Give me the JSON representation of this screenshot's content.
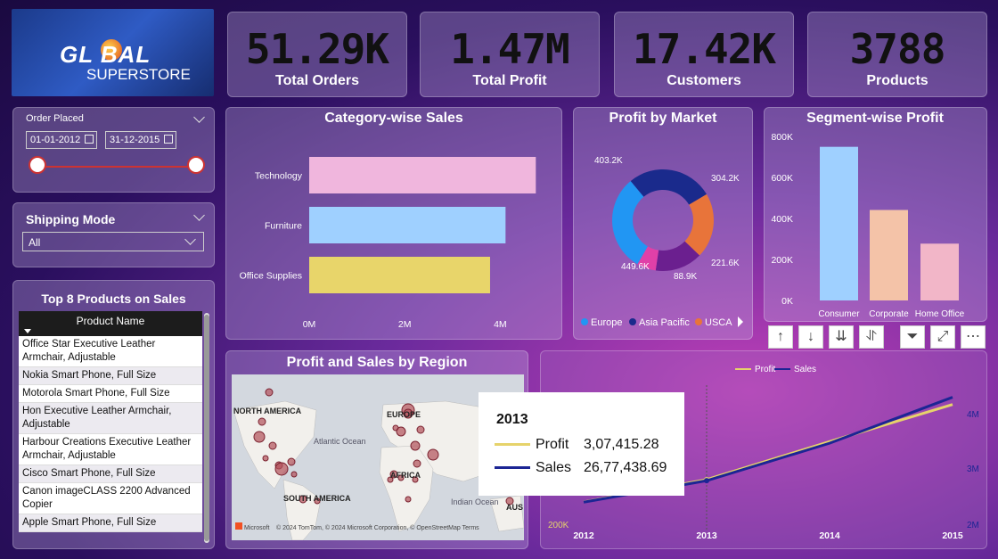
{
  "logo": {
    "line1": "GL  BAL",
    "line2": "SUPERSTORE"
  },
  "kpis": [
    {
      "value": "51.29K",
      "label": "Total Orders"
    },
    {
      "value": "1.47M",
      "label": "Total Profit"
    },
    {
      "value": "17.42K",
      "label": "Customers"
    },
    {
      "value": "3788",
      "label": "Products"
    }
  ],
  "order_filter": {
    "title": "Order Placed",
    "start": "01-01-2012",
    "end": "31-12-2015"
  },
  "shipping_filter": {
    "title": "Shipping Mode",
    "selected": "All"
  },
  "top_products": {
    "title": "Top 8 Products on Sales",
    "column": "Product Name",
    "rows": [
      "Office Star Executive Leather Armchair, Adjustable",
      "Nokia Smart Phone, Full Size",
      "Motorola Smart Phone, Full Size",
      "Hon Executive Leather Armchair, Adjustable",
      "Harbour Creations Executive Leather Armchair, Adjustable",
      "Cisco Smart Phone, Full Size",
      "Canon imageCLASS 2200 Advanced Copier",
      "Apple Smart Phone, Full Size"
    ]
  },
  "map_panel": {
    "title": "Profit and Sales by Region",
    "labels": [
      "NORTH AMERICA",
      "EUROPE",
      "Atlantic Ocean",
      "AFRICA",
      "SOUTH AMERICA",
      "Indian Ocean",
      "AUS"
    ],
    "attribution": "© 2024 TomTom, © 2024 Microsoft Corporation, © OpenStreetMap  Terms",
    "brand": "Microsoft"
  },
  "tooltip": {
    "year": "2013",
    "rows": [
      {
        "name": "Profit",
        "value": "3,07,415.28",
        "color": "#e6d36b"
      },
      {
        "name": "Sales",
        "value": "26,77,438.69",
        "color": "#1c2594"
      }
    ]
  },
  "toolbar": {
    "icons": [
      "arrow-up-icon",
      "arrow-down-icon",
      "double-arrow-down-icon",
      "expand-hierarchy-icon",
      "filter-icon",
      "focus-mode-icon",
      "more-options-icon"
    ]
  },
  "chart_data": [
    {
      "type": "bar",
      "orientation": "horizontal",
      "title": "Category-wise Sales",
      "categories": [
        "Technology",
        "Furniture",
        "Office Supplies"
      ],
      "values": [
        4744557,
        4110874,
        3787070
      ],
      "colors": [
        "#f0b6dd",
        "#9fd0ff",
        "#e8d56a"
      ],
      "xlim": [
        0,
        5000000
      ],
      "xticks": [
        "0M",
        "2M",
        "4M"
      ]
    },
    {
      "type": "pie",
      "title": "Profit by Market",
      "donut": true,
      "legend_position": "bottom",
      "legend": [
        "Europe",
        "Asia Pacific",
        "USCA"
      ],
      "slices": [
        {
          "name": "Europe",
          "value": 449.6,
          "label": "449.6K",
          "color": "#2196f3"
        },
        {
          "name": "Asia Pacific",
          "value": 403.2,
          "label": "403.2K",
          "color": "#1a2a8c"
        },
        {
          "name": "USCA",
          "value": 304.2,
          "label": "304.2K",
          "color": "#e8743a"
        },
        {
          "name": "",
          "value": 221.6,
          "label": "221.6K",
          "color": "#6b1f8f"
        },
        {
          "name": "",
          "value": 88.9,
          "label": "88.9K",
          "color": "#e040a8"
        }
      ]
    },
    {
      "type": "bar",
      "title": "Segment-wise Profit",
      "categories": [
        "Consumer",
        "Corporate",
        "Home Office"
      ],
      "values": [
        749240,
        441209,
        277010
      ],
      "colors": [
        "#9fd0ff",
        "#f4c3a8",
        "#f2b6c8"
      ],
      "ylim": [
        0,
        800000
      ],
      "yticks": [
        "0K",
        "200K",
        "400K",
        "600K",
        "800K"
      ]
    },
    {
      "type": "line",
      "x": [
        "2012",
        "2013",
        "2014",
        "2015"
      ],
      "series": [
        {
          "name": "Profit",
          "values": [
            248941,
            307415,
            406935,
            504166
          ],
          "color": "#e6d36b"
        },
        {
          "name": "Sales",
          "values": [
            2259450,
            2677439,
            3405746,
            4299866
          ],
          "color": "#1c2594"
        }
      ],
      "axis_labels": [
        "200K",
        "3M",
        "2M",
        "4M"
      ],
      "legend_position": "top"
    }
  ]
}
